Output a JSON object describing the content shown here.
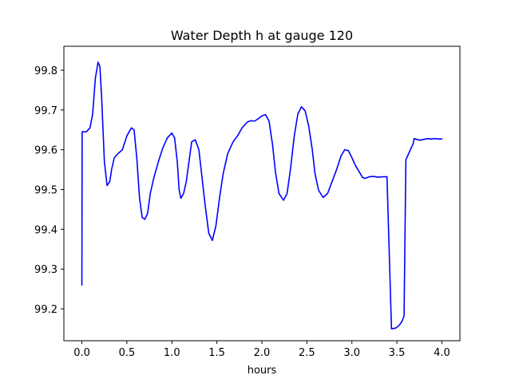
{
  "chart_data": {
    "type": "line",
    "title": "Water Depth h at gauge 120",
    "xlabel": "hours",
    "ylabel": "",
    "xlim": [
      -0.2,
      4.2
    ],
    "ylim": [
      99.12,
      99.86
    ],
    "grid": false,
    "x_ticks": [
      0.0,
      0.5,
      1.0,
      1.5,
      2.0,
      2.5,
      3.0,
      3.5,
      4.0
    ],
    "x_tick_labels": [
      "0.0",
      "0.5",
      "1.0",
      "1.5",
      "2.0",
      "2.5",
      "3.0",
      "3.5",
      "4.0"
    ],
    "y_ticks": [
      99.2,
      99.3,
      99.4,
      99.5,
      99.6,
      99.7,
      99.8
    ],
    "y_tick_labels": [
      "99.2",
      "99.3",
      "99.4",
      "99.5",
      "99.6",
      "99.7",
      "99.8"
    ],
    "series": [
      {
        "color": "#0000ff",
        "x": [
          0.0,
          0.003,
          0.01,
          0.05,
          0.09,
          0.12,
          0.15,
          0.18,
          0.2,
          0.22,
          0.25,
          0.28,
          0.31,
          0.33,
          0.36,
          0.4,
          0.45,
          0.5,
          0.55,
          0.58,
          0.61,
          0.64,
          0.67,
          0.7,
          0.73,
          0.76,
          0.8,
          0.85,
          0.9,
          0.95,
          1.0,
          1.03,
          1.06,
          1.08,
          1.1,
          1.13,
          1.16,
          1.19,
          1.22,
          1.26,
          1.3,
          1.33,
          1.37,
          1.41,
          1.45,
          1.49,
          1.53,
          1.57,
          1.62,
          1.68,
          1.73,
          1.78,
          1.84,
          1.88,
          1.92,
          1.96,
          2.0,
          2.04,
          2.08,
          2.12,
          2.15,
          2.19,
          2.24,
          2.28,
          2.32,
          2.36,
          2.4,
          2.44,
          2.48,
          2.52,
          2.56,
          2.59,
          2.63,
          2.68,
          2.73,
          2.78,
          2.83,
          2.88,
          2.92,
          2.96,
          3.0,
          3.04,
          3.08,
          3.12,
          3.15,
          3.19,
          3.24,
          3.29,
          3.34,
          3.39,
          3.44,
          3.49,
          3.53,
          3.56,
          3.58,
          3.58,
          3.6,
          3.62,
          3.65,
          3.68,
          3.69,
          3.69,
          3.72,
          3.76,
          3.8,
          3.84,
          3.88,
          3.92,
          3.96,
          3.99,
          4.0
        ],
        "y": [
          99.26,
          99.645,
          99.645,
          99.645,
          99.655,
          99.69,
          99.78,
          99.82,
          99.81,
          99.73,
          99.57,
          99.51,
          99.52,
          99.55,
          99.58,
          99.59,
          99.6,
          99.635,
          99.655,
          99.65,
          99.58,
          99.48,
          99.43,
          99.425,
          99.44,
          99.49,
          99.53,
          99.57,
          99.605,
          99.63,
          99.642,
          99.63,
          99.57,
          99.5,
          99.478,
          99.49,
          99.52,
          99.57,
          99.62,
          99.625,
          99.6,
          99.54,
          99.46,
          99.39,
          99.372,
          99.41,
          99.48,
          99.54,
          99.59,
          99.62,
          99.635,
          99.655,
          99.67,
          99.673,
          99.672,
          99.678,
          99.685,
          99.688,
          99.672,
          99.61,
          99.545,
          99.49,
          99.473,
          99.49,
          99.555,
          99.635,
          99.69,
          99.708,
          99.698,
          99.66,
          99.6,
          99.54,
          99.498,
          99.48,
          99.49,
          99.52,
          99.55,
          99.585,
          99.6,
          99.598,
          99.58,
          99.56,
          99.545,
          99.53,
          99.528,
          99.532,
          99.533,
          99.531,
          99.532,
          99.532,
          99.15,
          99.152,
          99.16,
          99.17,
          99.183,
          99.19,
          99.575,
          99.585,
          99.6,
          99.615,
          99.625,
          99.628,
          99.626,
          99.624,
          99.626,
          99.628,
          99.627,
          99.628,
          99.627,
          99.627,
          99.627
        ]
      }
    ]
  }
}
